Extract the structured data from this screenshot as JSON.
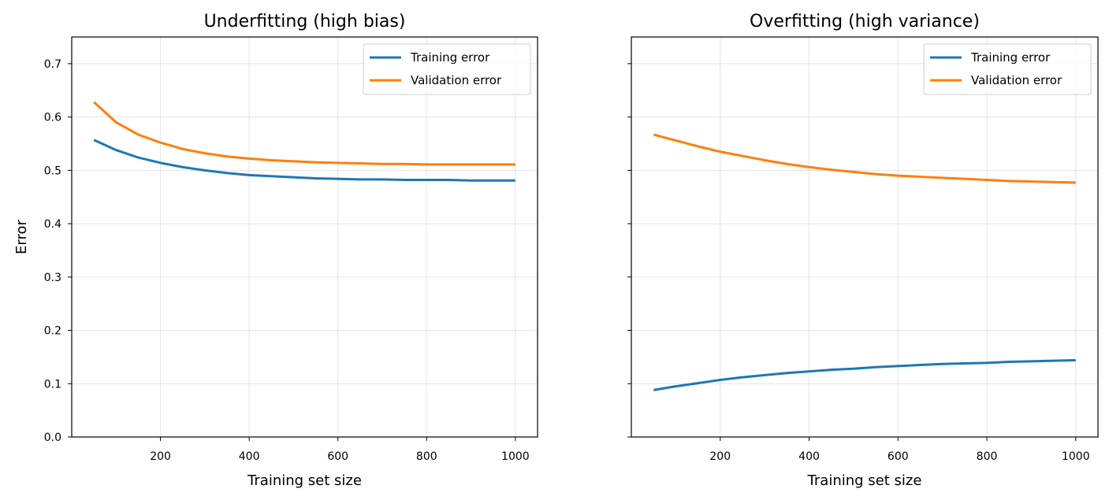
{
  "chart_data": [
    {
      "type": "line",
      "title": "Underfitting (high bias)",
      "xlabel": "Training set size",
      "ylabel": "Error",
      "xlim": [
        0,
        1050
      ],
      "ylim": [
        0,
        0.75
      ],
      "xticks": [
        200,
        400,
        600,
        800,
        1000
      ],
      "yticks": [
        0.0,
        0.1,
        0.2,
        0.3,
        0.4,
        0.5,
        0.6,
        0.7
      ],
      "grid": true,
      "legend_position": "top-right",
      "x": [
        50,
        100,
        150,
        200,
        250,
        300,
        350,
        400,
        450,
        500,
        550,
        600,
        650,
        700,
        750,
        800,
        850,
        900,
        950,
        1000
      ],
      "series": [
        {
          "name": "Training error",
          "color": "#1f77b4",
          "values": [
            0.557,
            0.538,
            0.524,
            0.514,
            0.506,
            0.5,
            0.495,
            0.491,
            0.489,
            0.487,
            0.485,
            0.484,
            0.483,
            0.483,
            0.482,
            0.482,
            0.482,
            0.481,
            0.481,
            0.481
          ]
        },
        {
          "name": "Validation error",
          "color": "#ff7f0e",
          "values": [
            0.628,
            0.59,
            0.567,
            0.552,
            0.54,
            0.532,
            0.526,
            0.522,
            0.519,
            0.517,
            0.515,
            0.514,
            0.513,
            0.512,
            0.512,
            0.511,
            0.511,
            0.511,
            0.511,
            0.511
          ]
        }
      ]
    },
    {
      "type": "line",
      "title": "Overfitting (high variance)",
      "xlabel": "Training set size",
      "ylabel": "",
      "xlim": [
        0,
        1050
      ],
      "ylim": [
        0,
        0.75
      ],
      "xticks": [
        200,
        400,
        600,
        800,
        1000
      ],
      "yticks": [
        0.0,
        0.1,
        0.2,
        0.3,
        0.4,
        0.5,
        0.6,
        0.7
      ],
      "grid": true,
      "legend_position": "top-right",
      "x": [
        50,
        100,
        150,
        200,
        250,
        300,
        350,
        400,
        450,
        500,
        550,
        600,
        650,
        700,
        750,
        800,
        850,
        900,
        950,
        1000
      ],
      "series": [
        {
          "name": "Training error",
          "color": "#1f77b4",
          "values": [
            0.088,
            0.095,
            0.101,
            0.107,
            0.112,
            0.116,
            0.12,
            0.123,
            0.126,
            0.128,
            0.131,
            0.133,
            0.135,
            0.137,
            0.138,
            0.139,
            0.141,
            0.142,
            0.143,
            0.144
          ]
        },
        {
          "name": "Validation error",
          "color": "#ff7f0e",
          "values": [
            0.567,
            0.556,
            0.545,
            0.535,
            0.527,
            0.519,
            0.512,
            0.506,
            0.501,
            0.497,
            0.493,
            0.49,
            0.488,
            0.486,
            0.484,
            0.482,
            0.48,
            0.479,
            0.478,
            0.477
          ]
        }
      ]
    }
  ]
}
